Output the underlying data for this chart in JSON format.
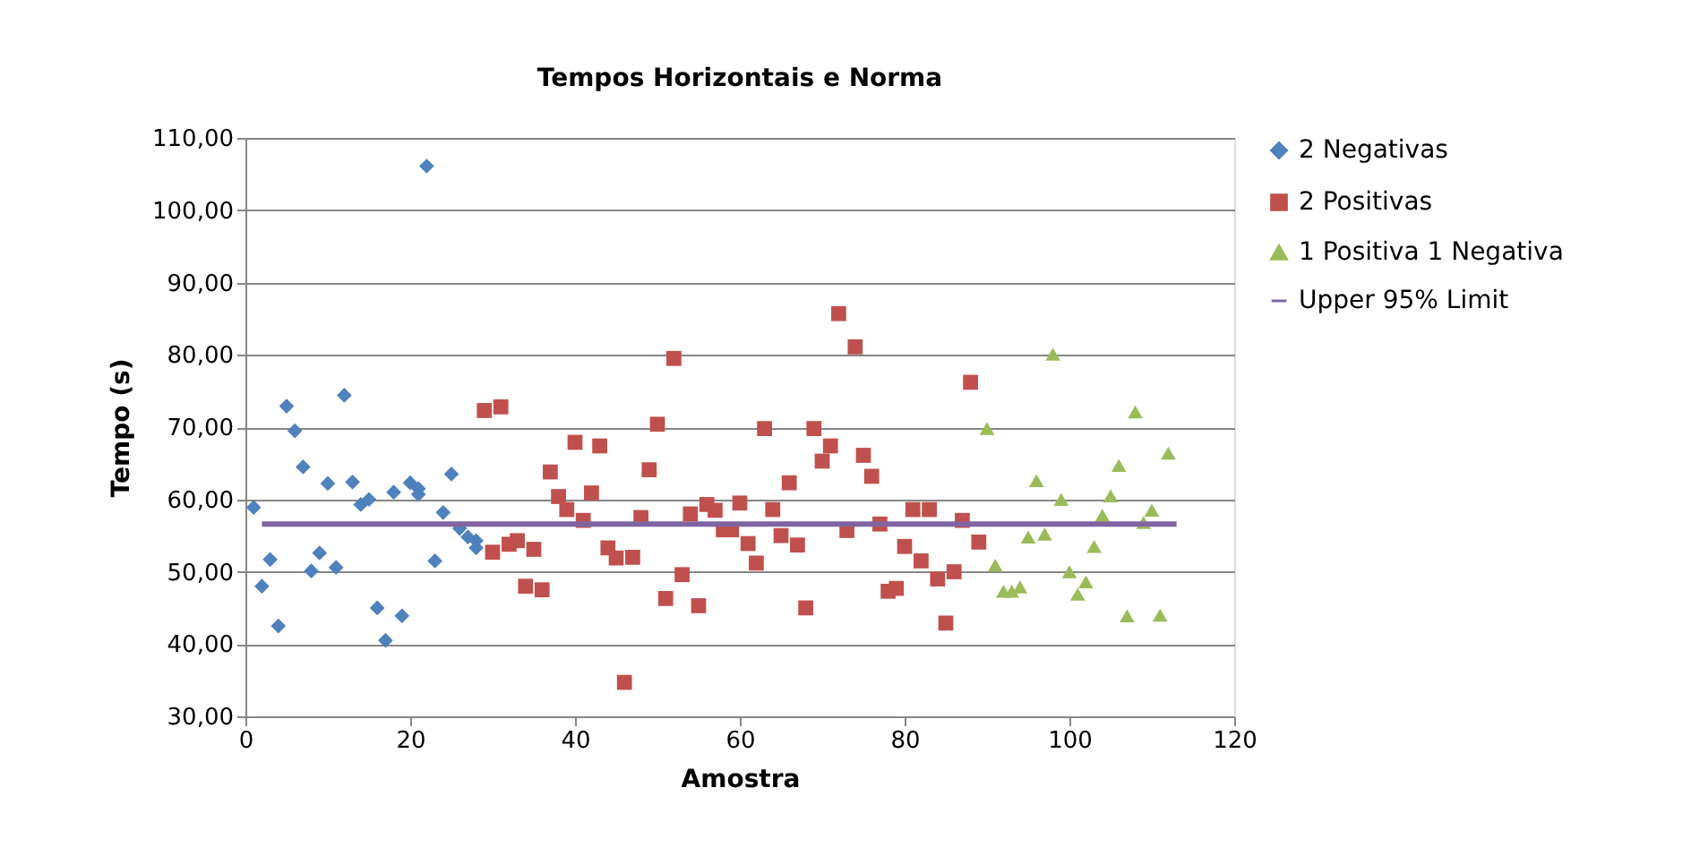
{
  "chart_data": {
    "type": "scatter",
    "title": "Tempos Horizontais e Norma",
    "xlabel": "Amostra",
    "ylabel": "Tempo (s)",
    "xlim": [
      0,
      120
    ],
    "xticks": [
      0,
      20,
      40,
      60,
      80,
      100,
      120
    ],
    "ylim": [
      30,
      110
    ],
    "yticks": [
      {
        "value": 30,
        "label": "30,00"
      },
      {
        "value": 40,
        "label": "40,00"
      },
      {
        "value": 50,
        "label": "50,00"
      },
      {
        "value": 60,
        "label": "60,00"
      },
      {
        "value": 70,
        "label": "70,00"
      },
      {
        "value": 80,
        "label": "80,00"
      },
      {
        "value": 90,
        "label": "90,00"
      },
      {
        "value": 100,
        "label": "100,00"
      },
      {
        "value": 110,
        "label": "110,00"
      }
    ],
    "grid": "y",
    "legend": "right",
    "series": [
      {
        "name": "2 Negativas",
        "marker": "diamond",
        "color": "#4f81bd",
        "x": [
          1,
          2,
          3,
          4,
          5,
          6,
          7,
          8,
          9,
          10,
          11,
          12,
          13,
          14,
          15,
          16,
          17,
          18,
          19,
          20,
          21,
          21,
          22,
          23,
          24,
          25,
          26,
          27,
          28,
          28
        ],
        "values": [
          58.9,
          48.0,
          51.7,
          42.5,
          72.9,
          69.5,
          64.5,
          50.1,
          52.6,
          62.2,
          50.6,
          74.4,
          62.4,
          59.3,
          60.0,
          45.0,
          40.5,
          61.0,
          43.9,
          62.3,
          61.5,
          60.7,
          106.1,
          51.5,
          58.2,
          63.5,
          56.0,
          54.8,
          54.3,
          53.3
        ]
      },
      {
        "name": "2 Positivas",
        "marker": "square",
        "color": "#c0504d",
        "x": [
          29,
          30,
          31,
          32,
          33,
          34,
          35,
          36,
          37,
          38,
          39,
          40,
          41,
          42,
          43,
          44,
          45,
          46,
          47,
          48,
          49,
          50,
          51,
          52,
          53,
          54,
          55,
          56,
          57,
          58,
          59,
          60,
          61,
          62,
          63,
          64,
          65,
          66,
          67,
          68,
          69,
          70,
          71,
          72,
          73,
          74,
          75,
          76,
          77,
          78,
          79,
          80,
          81,
          82,
          83,
          84,
          85,
          86,
          87,
          88,
          89
        ],
        "values": [
          72.3,
          52.7,
          72.8,
          53.8,
          54.3,
          48.0,
          53.1,
          47.5,
          63.8,
          60.4,
          58.6,
          67.9,
          57.1,
          60.9,
          67.4,
          53.3,
          51.9,
          34.7,
          52.0,
          57.5,
          64.1,
          70.4,
          46.3,
          79.5,
          49.6,
          58.0,
          45.3,
          59.3,
          58.5,
          55.8,
          55.8,
          59.5,
          53.9,
          51.2,
          69.8,
          58.6,
          55.0,
          62.3,
          53.7,
          45.0,
          69.8,
          65.3,
          67.4,
          85.7,
          55.7,
          81.1,
          66.1,
          63.2,
          56.6,
          47.3,
          47.7,
          53.5,
          58.6,
          51.5,
          58.6,
          49.0,
          42.9,
          50.0,
          57.1,
          76.2,
          54.1
        ]
      },
      {
        "name": "1 Positiva 1 Negativa",
        "marker": "triangle",
        "color": "#9bbb59",
        "x": [
          90,
          91,
          92,
          93,
          94,
          95,
          96,
          97,
          98,
          99,
          100,
          101,
          102,
          103,
          104,
          105,
          106,
          107,
          108,
          109,
          110,
          111,
          112
        ],
        "values": [
          69.8,
          50.9,
          47.3,
          47.3,
          47.9,
          54.8,
          62.6,
          55.2,
          80.1,
          60.0,
          50.0,
          46.9,
          48.6,
          53.5,
          57.8,
          60.5,
          64.7,
          43.9,
          72.1,
          56.8,
          58.5,
          44.0,
          66.4
        ]
      },
      {
        "name": "Upper 95% Limit",
        "type": "line",
        "marker": "none",
        "color": "#8064a2",
        "x": [
          2,
          113
        ],
        "values": [
          56.6,
          56.6
        ]
      }
    ]
  }
}
